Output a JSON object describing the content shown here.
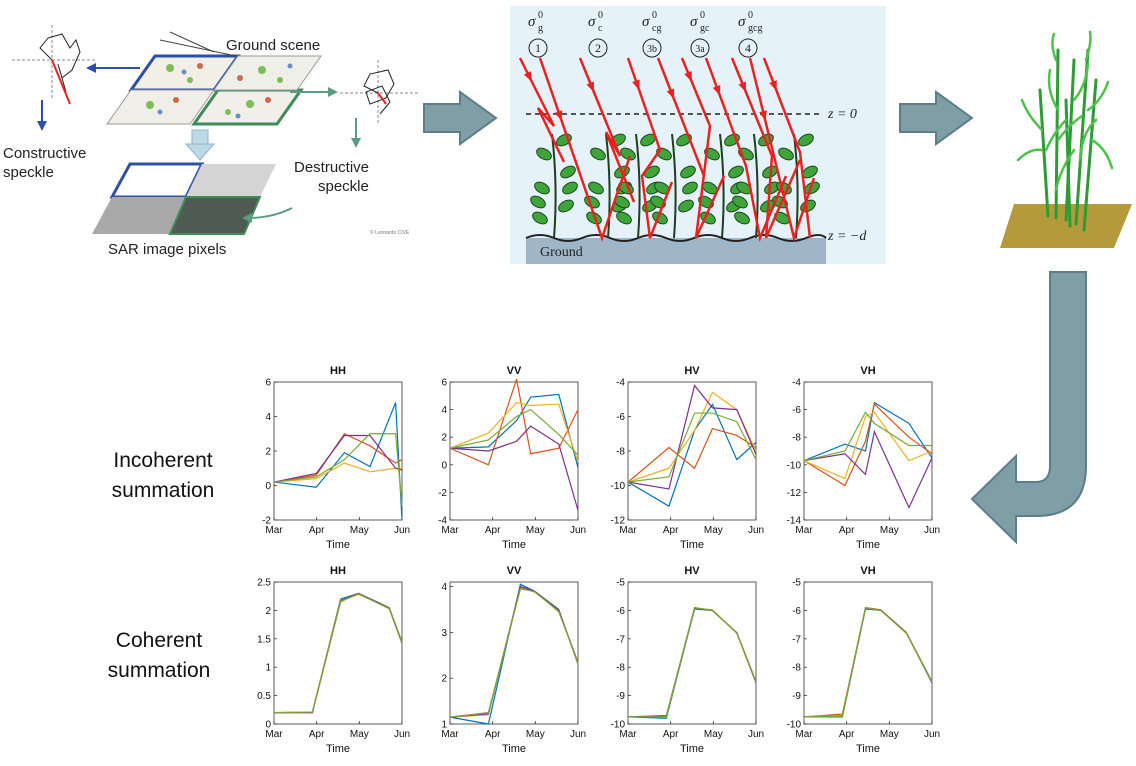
{
  "panel_speckle": {
    "ground_scene": "Ground scene",
    "constructive_l1": "Constructive",
    "constructive_l2": "speckle",
    "destructive_l1": "Destructive",
    "destructive_l2": "speckle",
    "sar_pixels": "SAR image pixels",
    "credit": "© Leonardo CIVE"
  },
  "panel_canopy": {
    "terms": [
      {
        "sym": "σ",
        "sup": "0",
        "sub": "g",
        "num": "1"
      },
      {
        "sym": "σ",
        "sup": "0",
        "sub": "c",
        "num": "2"
      },
      {
        "sym": "σ",
        "sup": "0",
        "sub": "cg",
        "num": "3b"
      },
      {
        "sym": "σ",
        "sup": "0",
        "sub": "gc",
        "num": "3a"
      },
      {
        "sym": "σ",
        "sup": "0",
        "sub": "gcg",
        "num": "4"
      }
    ],
    "z_top": "z = 0",
    "z_bottom": "z = −d",
    "ground": "Ground"
  },
  "row_labels": {
    "incoherent": "Incoherent\nsummation",
    "coherent": "Coherent\nsummation"
  },
  "colors": {
    "arrow_fill": "#7f9ea6",
    "arrow_stroke": "#5b7e88",
    "red": "#e8231f",
    "leaf": "#3fa53a",
    "soil": "#b59a3c",
    "sky": "#e6f2fa",
    "series": [
      "#0072BD",
      "#D95319",
      "#EDB120",
      "#7E2F8E",
      "#77AC30"
    ]
  },
  "chart_data": [
    {
      "title": "HH",
      "type": "line",
      "xlabel": "Time",
      "ylim": [
        -2,
        6
      ],
      "yticks": [
        "-2",
        "0",
        "2",
        "4",
        "6"
      ],
      "xticks": [
        "Mar",
        "Apr",
        "May",
        "Jun"
      ],
      "x": [
        0,
        0.33,
        0.55,
        0.75,
        0.95,
        1.0
      ],
      "series": [
        {
          "values": [
            0.2,
            -0.1,
            1.9,
            1.1,
            4.8,
            -2.0
          ]
        },
        {
          "values": [
            0.2,
            0.6,
            3.0,
            2.3,
            1.3,
            1.5
          ]
        },
        {
          "values": [
            0.2,
            0.4,
            1.3,
            0.8,
            1.0,
            1.0
          ]
        },
        {
          "values": [
            0.2,
            0.7,
            2.9,
            2.9,
            1.0,
            0.9
          ]
        },
        {
          "values": [
            0.2,
            0.5,
            1.5,
            3.0,
            3.0,
            -1.2
          ]
        }
      ]
    },
    {
      "title": "VV",
      "type": "line",
      "xlabel": "Time",
      "ylim": [
        -4,
        6
      ],
      "yticks": [
        "-4",
        "-2",
        "0",
        "2",
        "4",
        "6"
      ],
      "xticks": [
        "Mar",
        "Apr",
        "May",
        "Jun"
      ],
      "x": [
        0,
        0.3,
        0.52,
        0.63,
        0.85,
        1.0
      ],
      "series": [
        {
          "values": [
            1.2,
            1.3,
            3.2,
            4.9,
            5.1,
            -0.2
          ]
        },
        {
          "values": [
            1.2,
            0.0,
            6.2,
            0.8,
            1.2,
            4.0
          ]
        },
        {
          "values": [
            1.2,
            2.3,
            4.5,
            4.3,
            4.4,
            0.2
          ]
        },
        {
          "values": [
            1.2,
            1.0,
            1.7,
            2.8,
            1.5,
            -3.3
          ]
        },
        {
          "values": [
            1.2,
            1.8,
            3.5,
            4.0,
            2.2,
            0.7
          ]
        }
      ]
    },
    {
      "title": "HV",
      "type": "line",
      "xlabel": "Time",
      "ylim": [
        -12,
        -4
      ],
      "yticks": [
        "-12",
        "-10",
        "-8",
        "-6",
        "-4"
      ],
      "xticks": [
        "Mar",
        "Apr",
        "May",
        "Jun"
      ],
      "x": [
        0,
        0.32,
        0.52,
        0.66,
        0.85,
        1.0
      ],
      "series": [
        {
          "values": [
            -9.8,
            -11.2,
            -6.8,
            -5.3,
            -8.5,
            -7.5
          ]
        },
        {
          "values": [
            -9.8,
            -7.8,
            -9.0,
            -6.7,
            -7.1,
            -7.8
          ]
        },
        {
          "values": [
            -9.8,
            -9.0,
            -6.8,
            -4.6,
            -5.6,
            -8.0
          ]
        },
        {
          "values": [
            -9.8,
            -10.2,
            -4.2,
            -5.5,
            -5.6,
            -8.2
          ]
        },
        {
          "values": [
            -9.8,
            -9.5,
            -5.8,
            -5.8,
            -6.3,
            -8.5
          ]
        }
      ]
    },
    {
      "title": "VH",
      "type": "line",
      "xlabel": "Time",
      "ylim": [
        -14,
        -4
      ],
      "yticks": [
        "-14",
        "-12",
        "-10",
        "-8",
        "-6",
        "-4"
      ],
      "xticks": [
        "Mar",
        "Apr",
        "May",
        "Jun"
      ],
      "x": [
        0,
        0.32,
        0.48,
        0.55,
        0.82,
        1.0
      ],
      "series": [
        {
          "values": [
            -9.7,
            -8.5,
            -9.0,
            -5.5,
            -7.0,
            -9.5
          ]
        },
        {
          "values": [
            -9.7,
            -11.5,
            -8.3,
            -5.6,
            -8.0,
            -9.2
          ]
        },
        {
          "values": [
            -9.7,
            -11.0,
            -6.5,
            -6.2,
            -9.7,
            -9.0
          ]
        },
        {
          "values": [
            -9.7,
            -9.2,
            -10.7,
            -7.6,
            -13.1,
            -9.5
          ]
        },
        {
          "values": [
            -9.7,
            -9.0,
            -6.2,
            -7.0,
            -8.6,
            -8.6
          ]
        }
      ]
    },
    {
      "title": "HH",
      "type": "line",
      "xlabel": "Time",
      "ylim": [
        0,
        2.5
      ],
      "yticks": [
        "0",
        "0.5",
        "1",
        "1.5",
        "2",
        "2.5"
      ],
      "xticks": [
        "Mar",
        "Apr",
        "May",
        "Jun"
      ],
      "x": [
        0,
        0.3,
        0.52,
        0.66,
        0.9,
        1.0
      ],
      "series": [
        {
          "values": [
            0.2,
            0.21,
            2.2,
            2.3,
            2.05,
            1.45
          ]
        },
        {
          "values": [
            0.2,
            0.2,
            2.15,
            2.3,
            2.03,
            1.42
          ]
        },
        {
          "values": [
            0.2,
            0.21,
            2.18,
            2.28,
            2.05,
            1.44
          ]
        },
        {
          "values": [
            0.2,
            0.2,
            2.17,
            2.3,
            2.04,
            1.43
          ]
        },
        {
          "values": [
            0.2,
            0.21,
            2.16,
            2.29,
            2.03,
            1.44
          ]
        }
      ]
    },
    {
      "title": "VV",
      "type": "line",
      "xlabel": "Time",
      "ylim": [
        1,
        4.1
      ],
      "yticks": [
        "1",
        "2",
        "3",
        "4"
      ],
      "xticks": [
        "Mar",
        "Apr",
        "May",
        "Jun"
      ],
      "x": [
        0,
        0.3,
        0.55,
        0.66,
        0.85,
        1.0
      ],
      "series": [
        {
          "values": [
            1.15,
            1.0,
            4.05,
            3.9,
            3.5,
            2.3
          ]
        },
        {
          "values": [
            1.15,
            1.25,
            3.95,
            3.9,
            3.45,
            2.35
          ]
        },
        {
          "values": [
            1.15,
            1.2,
            3.98,
            3.88,
            3.47,
            2.32
          ]
        },
        {
          "values": [
            1.15,
            1.22,
            4.0,
            3.9,
            3.48,
            2.34
          ]
        },
        {
          "values": [
            1.15,
            1.24,
            3.96,
            3.89,
            3.46,
            2.33
          ]
        }
      ]
    },
    {
      "title": "HV",
      "type": "line",
      "xlabel": "Time",
      "ylim": [
        -10,
        -5
      ],
      "yticks": [
        "-10",
        "-9",
        "-8",
        "-7",
        "-6",
        "-5"
      ],
      "xticks": [
        "Mar",
        "Apr",
        "May",
        "Jun"
      ],
      "x": [
        0,
        0.3,
        0.52,
        0.66,
        0.85,
        1.0
      ],
      "series": [
        {
          "values": [
            -9.75,
            -9.8,
            -5.95,
            -6.0,
            -6.8,
            -8.55
          ]
        },
        {
          "values": [
            -9.75,
            -9.7,
            -5.9,
            -6.0,
            -6.78,
            -8.5
          ]
        },
        {
          "values": [
            -9.75,
            -9.75,
            -5.92,
            -5.98,
            -6.8,
            -8.52
          ]
        },
        {
          "values": [
            -9.75,
            -9.72,
            -5.93,
            -6.0,
            -6.79,
            -8.53
          ]
        },
        {
          "values": [
            -9.75,
            -9.74,
            -5.91,
            -5.99,
            -6.8,
            -8.51
          ]
        }
      ]
    },
    {
      "title": "VH",
      "type": "line",
      "xlabel": "Time",
      "ylim": [
        -10,
        -5
      ],
      "yticks": [
        "-10",
        "-9",
        "-8",
        "-7",
        "-6",
        "-5"
      ],
      "xticks": [
        "Mar",
        "Apr",
        "May",
        "Jun"
      ],
      "x": [
        0,
        0.3,
        0.48,
        0.6,
        0.8,
        1.0
      ],
      "series": [
        {
          "values": [
            -9.75,
            -9.75,
            -5.95,
            -6.0,
            -6.8,
            -8.55
          ]
        },
        {
          "values": [
            -9.75,
            -9.65,
            -5.9,
            -5.98,
            -6.78,
            -8.5
          ]
        },
        {
          "values": [
            -9.75,
            -9.7,
            -5.92,
            -6.0,
            -6.8,
            -8.52
          ]
        },
        {
          "values": [
            -9.75,
            -9.72,
            -5.93,
            -5.99,
            -6.79,
            -8.53
          ]
        },
        {
          "values": [
            -9.75,
            -9.73,
            -5.91,
            -6.0,
            -6.8,
            -8.51
          ]
        }
      ]
    }
  ]
}
